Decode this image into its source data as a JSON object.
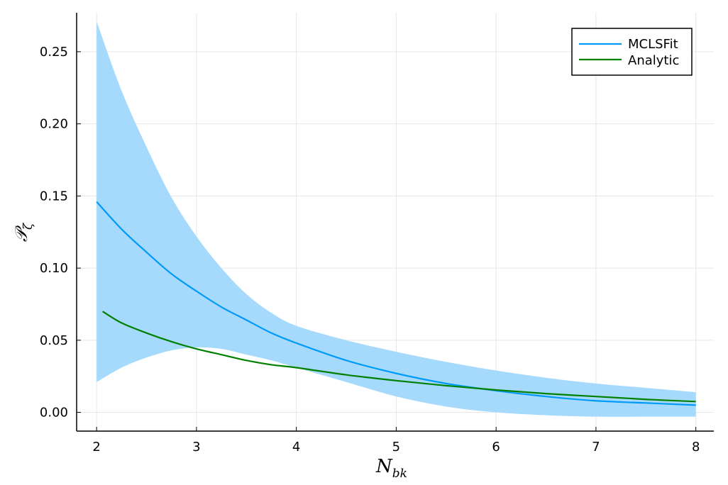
{
  "chart_data": {
    "type": "line",
    "title": "",
    "xlabel": "N_bk",
    "xlabel_main": "N",
    "xlabel_sub": "bk",
    "ylabel": "𝒫_ζ",
    "ylabel_main": "𝒫",
    "ylabel_sub": "ζ",
    "xlim": [
      1.8,
      8.18
    ],
    "ylim": [
      -0.013,
      0.277
    ],
    "xticks": [
      2,
      3,
      4,
      5,
      6,
      7,
      8
    ],
    "xtick_labels": [
      "2",
      "3",
      "4",
      "5",
      "6",
      "7",
      "8"
    ],
    "yticks": [
      0.0,
      0.05,
      0.1,
      0.15,
      0.2,
      0.25
    ],
    "ytick_labels": [
      "0.00",
      "0.05",
      "0.10",
      "0.15",
      "0.20",
      "0.25"
    ],
    "grid": true,
    "legend_position": "top-right",
    "series": [
      {
        "name": "MCLSFit",
        "color": "#009af9",
        "x": [
          2.0,
          2.25,
          2.5,
          2.75,
          3.0,
          3.25,
          3.5,
          3.75,
          4.0,
          4.5,
          5.0,
          5.5,
          6.0,
          6.5,
          7.0,
          7.5,
          8.0
        ],
        "y": [
          0.146,
          0.127,
          0.111,
          0.096,
          0.084,
          0.073,
          0.064,
          0.055,
          0.048,
          0.036,
          0.027,
          0.02,
          0.015,
          0.011,
          0.008,
          0.0065,
          0.005
        ],
        "band_lower": [
          0.021,
          0.031,
          0.038,
          0.043,
          0.045,
          0.044,
          0.04,
          0.036,
          0.031,
          0.021,
          0.011,
          0.004,
          0.0,
          -0.002,
          -0.003,
          -0.003,
          -0.003
        ],
        "band_upper": [
          0.271,
          0.223,
          0.184,
          0.149,
          0.122,
          0.1,
          0.082,
          0.069,
          0.06,
          0.05,
          0.042,
          0.035,
          0.029,
          0.024,
          0.02,
          0.017,
          0.014
        ],
        "band_color": "#a6dafd"
      },
      {
        "name": "Analytic",
        "color": "#008000",
        "x": [
          2.06,
          2.25,
          2.5,
          2.75,
          3.0,
          3.25,
          3.5,
          3.75,
          4.0,
          4.5,
          5.0,
          5.5,
          6.0,
          6.5,
          7.0,
          7.5,
          8.0
        ],
        "y": [
          0.07,
          0.062,
          0.055,
          0.049,
          0.044,
          0.04,
          0.036,
          0.033,
          0.031,
          0.026,
          0.022,
          0.0185,
          0.0155,
          0.013,
          0.011,
          0.009,
          0.0075
        ]
      }
    ]
  }
}
